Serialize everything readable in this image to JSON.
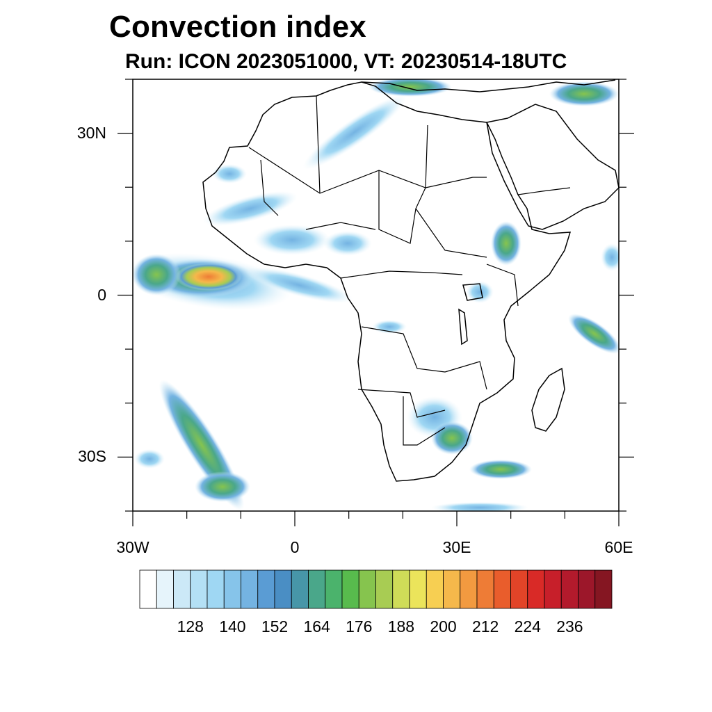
{
  "title": "Convection index",
  "subtitle": "Run: ICON 2023051000,  VT: 20230514-18UTC",
  "map": {
    "projection": "cylindrical equidistant",
    "region": "Africa",
    "lon_range": [
      -30,
      60
    ],
    "lat_range": [
      -40,
      40
    ],
    "lat_labels": [
      {
        "lat": 30,
        "text": "30N"
      },
      {
        "lat": 0,
        "text": "0"
      },
      {
        "lat": -30,
        "text": "30S"
      }
    ],
    "lon_labels": [
      {
        "lon": -30,
        "text": "30W"
      },
      {
        "lon": 0,
        "text": "0"
      },
      {
        "lon": 30,
        "text": "30E"
      },
      {
        "lon": 60,
        "text": "60E"
      }
    ],
    "coastline_color": "#000000"
  },
  "colorbar": {
    "colors": [
      "#ffffff",
      "#e6f4fb",
      "#cce9f7",
      "#b4e0f5",
      "#9fd7f3",
      "#86c4ea",
      "#74b3e2",
      "#5a9cd4",
      "#4a8ec4",
      "#4796a8",
      "#4aa78a",
      "#4bb36c",
      "#58bb4d",
      "#86c44e",
      "#a8cc53",
      "#cfdc58",
      "#ebe45b",
      "#f7cf52",
      "#f5b84b",
      "#f29a40",
      "#ee7c36",
      "#e95d2c",
      "#e24428",
      "#d92a27",
      "#c71f2a",
      "#b31a2c",
      "#9c172a",
      "#851622"
    ],
    "labels": [
      "128",
      "140",
      "152",
      "164",
      "176",
      "188",
      "200",
      "212",
      "224",
      "236"
    ]
  }
}
